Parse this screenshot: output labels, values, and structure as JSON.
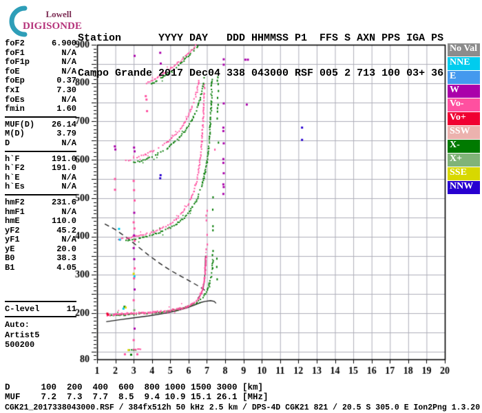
{
  "logo": {
    "line1": "Lowell",
    "line2": "DIGISONDE",
    "arc_color": "#2E9EB8"
  },
  "header": {
    "line1": "Station      YYYY DAY   DDD HHMMSS P1  FFS S AXN PPS IGA PS",
    "line2": "Campo Grande 2017 Dec04 338 043000 RSF 005 2 713 100 03+ 36"
  },
  "params": {
    "sections": [
      {
        "rows": [
          {
            "label": "foF2",
            "value": "6.900"
          },
          {
            "label": "foF1",
            "value": "N/A"
          },
          {
            "label": "foF1p",
            "value": "N/A"
          },
          {
            "label": "foE",
            "value": "N/A"
          },
          {
            "label": "foEp",
            "value": "0.37"
          },
          {
            "label": "fxI",
            "value": "7.30"
          },
          {
            "label": "foEs",
            "value": "N/A"
          },
          {
            "label": "fmin",
            "value": "1.60"
          }
        ]
      },
      {
        "rows": [
          {
            "label": "MUF(D)",
            "value": "26.14"
          },
          {
            "label": "M(D)",
            "value": "3.79"
          },
          {
            "label": "D",
            "value": "N/A"
          }
        ]
      },
      {
        "rows": [
          {
            "label": "h`F",
            "value": "191.0"
          },
          {
            "label": "h`F2",
            "value": "191.0"
          },
          {
            "label": "h`E",
            "value": "N/A"
          },
          {
            "label": "h`Es",
            "value": "N/A"
          }
        ]
      },
      {
        "rows": [
          {
            "label": "hmF2",
            "value": "231.6"
          },
          {
            "label": "hmF1",
            "value": "N/A"
          },
          {
            "label": "hmE",
            "value": "110.0"
          },
          {
            "label": "yF2",
            "value": "45.2"
          },
          {
            "label": "yF1",
            "value": "N/A"
          },
          {
            "label": "yE",
            "value": "20.0"
          },
          {
            "label": "B0",
            "value": "38.3"
          },
          {
            "label": "B1",
            "value": "4.05"
          }
        ]
      }
    ],
    "confidence": {
      "label": "C-level",
      "value": "11"
    },
    "auto_block": [
      "Auto:",
      "Artist5",
      "500200"
    ]
  },
  "legend": {
    "items": [
      {
        "label": "No Val",
        "color": "#8C8C8C"
      },
      {
        "label": "NNE",
        "color": "#00CCEE"
      },
      {
        "label": "E",
        "color": "#4499EE"
      },
      {
        "label": "W",
        "color": "#AA00AA"
      },
      {
        "label": "Vo-",
        "color": "#FF50A0"
      },
      {
        "label": "Vo+",
        "color": "#F00032"
      },
      {
        "label": "SSW",
        "color": "#ECB2AE"
      },
      {
        "label": "X-",
        "color": "#007A00"
      },
      {
        "label": "X+",
        "color": "#80B378"
      },
      {
        "label": "SSE",
        "color": "#D8D800"
      },
      {
        "label": "NNW",
        "color": "#2800D0"
      }
    ]
  },
  "footer": {
    "d_line": "D      100  200  400  600  800 1000 1500 3000 [km]",
    "muf_line": "MUF    7.2  7.3  7.7  8.5  9.4 10.9 15.1 26.1 [MHz]",
    "file_line": "CGK21_2017338043000.RSF / 384fx512h 50 kHz 2.5 km / DPS-4D CGK21 821 / 20.5 S 305.0 E Ion2Png 1.3.20"
  },
  "chart_data": {
    "type": "scatter",
    "title": "Digisonde ionogram, Campo Grande, 2017 Dec04 (day 338) 04:30:00",
    "x_axis": {
      "label": "[MHz]",
      "min": 1,
      "max": 20,
      "tick_step": 1,
      "ticks": [
        1,
        2,
        3,
        4,
        5,
        6,
        7,
        8,
        9,
        10,
        11,
        12,
        13,
        14,
        15,
        16,
        17,
        18,
        19,
        20
      ]
    },
    "y_axis": {
      "label": "[km]",
      "min": 80,
      "max": 900,
      "minor_tick_km": 10,
      "grid_step_km": 50,
      "labels": [
        80,
        200,
        300,
        400,
        500,
        600,
        700,
        800,
        900
      ]
    },
    "grid": {
      "on": true,
      "color": "#ADADB8"
    },
    "colors": {
      "pk": "#FF50A0",
      "gn": "#007A00",
      "w": "#AA00AA",
      "bl": "#2800D0",
      "cy": "#00CCEE",
      "sse": "#D8D800",
      "xp": "#80B378",
      "rd": "#F00032"
    },
    "traces": [
      {
        "name": "F-echo 4th hop X-mode",
        "color": "gn",
        "points": [
          [
            3.95,
            797
          ],
          [
            4.5,
            812
          ],
          [
            5.05,
            831
          ],
          [
            5.6,
            853
          ],
          [
            6.1,
            876
          ],
          [
            6.5,
            897
          ]
        ]
      },
      {
        "name": "F-echo 4th hop O-mode",
        "color": "pk",
        "points": [
          [
            3.7,
            799
          ],
          [
            4.2,
            812
          ],
          [
            4.7,
            828
          ],
          [
            5.2,
            845
          ],
          [
            5.7,
            864
          ],
          [
            6.1,
            882
          ],
          [
            6.4,
            898
          ]
        ]
      },
      {
        "name": "F-echo 3rd hop X-mode",
        "color": "gn",
        "points": [
          [
            3.0,
            592
          ],
          [
            3.6,
            600
          ],
          [
            4.2,
            612
          ],
          [
            4.8,
            629
          ],
          [
            5.35,
            651
          ],
          [
            5.85,
            678
          ],
          [
            6.25,
            710
          ],
          [
            6.55,
            745
          ],
          [
            6.75,
            782
          ],
          [
            6.88,
            818
          ]
        ]
      },
      {
        "name": "F-echo 3rd hop O-mode",
        "color": "pk",
        "points": [
          [
            2.55,
            597
          ],
          [
            3.1,
            605
          ],
          [
            3.7,
            615
          ],
          [
            4.3,
            629
          ],
          [
            4.85,
            646
          ],
          [
            5.3,
            666
          ],
          [
            5.7,
            690
          ],
          [
            6.0,
            716
          ],
          [
            6.25,
            745
          ],
          [
            6.45,
            778
          ],
          [
            6.58,
            808
          ]
        ]
      },
      {
        "name": "F-echo 2nd hop X-mode",
        "color": "gn",
        "points": [
          [
            2.6,
            389
          ],
          [
            3.2,
            395
          ],
          [
            3.9,
            403
          ],
          [
            4.6,
            414
          ],
          [
            5.2,
            428
          ],
          [
            5.7,
            446
          ],
          [
            6.1,
            468
          ],
          [
            6.45,
            496
          ],
          [
            6.72,
            530
          ],
          [
            6.92,
            570
          ],
          [
            7.06,
            615
          ],
          [
            7.15,
            662
          ],
          [
            7.21,
            712
          ],
          [
            7.25,
            762
          ],
          [
            7.27,
            808
          ]
        ]
      },
      {
        "name": "F-echo 2nd hop O-mode",
        "color": "pk",
        "points": [
          [
            2.15,
            392
          ],
          [
            2.7,
            396
          ],
          [
            3.3,
            402
          ],
          [
            3.9,
            409
          ],
          [
            4.4,
            418
          ],
          [
            4.9,
            430
          ],
          [
            5.3,
            444
          ],
          [
            5.65,
            461
          ],
          [
            5.95,
            482
          ],
          [
            6.2,
            507
          ],
          [
            6.4,
            536
          ],
          [
            6.55,
            570
          ],
          [
            6.66,
            610
          ],
          [
            6.74,
            655
          ],
          [
            6.8,
            705
          ],
          [
            6.84,
            755
          ],
          [
            6.86,
            795
          ]
        ]
      },
      {
        "name": "F-echo 1st hop X-mode",
        "color": "gn",
        "points": [
          [
            1.7,
            193
          ],
          [
            2.4,
            196
          ],
          [
            3.2,
            198
          ],
          [
            4.0,
            201
          ],
          [
            4.8,
            205
          ],
          [
            5.5,
            211
          ],
          [
            6.0,
            218
          ],
          [
            6.4,
            227
          ],
          [
            6.7,
            238
          ],
          [
            6.95,
            252
          ],
          [
            7.12,
            270
          ],
          [
            7.23,
            292
          ],
          [
            7.29,
            315
          ],
          [
            7.32,
            338
          ]
        ]
      },
      {
        "name": "F-echo 1st hop O-mode",
        "color": "pk",
        "style": {
          "w": 2,
          "h": 3,
          "step": 2.1,
          "p": 0.93,
          "jy": 0.8
        },
        "points": [
          [
            1.55,
            196
          ],
          [
            2.1,
            199
          ],
          [
            2.8,
            200
          ],
          [
            3.6,
            202
          ],
          [
            4.4,
            205
          ],
          [
            5.1,
            209
          ],
          [
            5.7,
            215
          ],
          [
            6.1,
            222
          ],
          [
            6.4,
            231
          ],
          [
            6.6,
            243
          ],
          [
            6.73,
            258
          ],
          [
            6.82,
            276
          ],
          [
            6.88,
            298
          ],
          [
            6.92,
            322
          ],
          [
            6.95,
            350
          ]
        ]
      },
      {
        "name": "Es remnant X-mode",
        "color": "gn",
        "style": {
          "w": 2,
          "h": 2,
          "step": 2,
          "p": 0.9,
          "jy": 0.4
        },
        "points": [
          [
            2.78,
            104
          ],
          [
            3.12,
            104
          ]
        ]
      },
      {
        "name": "Es remnant O-mode",
        "color": "pk",
        "style": {
          "w": 2,
          "h": 2,
          "step": 2,
          "p": 0.9,
          "jy": 0.4
        },
        "points": [
          [
            2.98,
            106
          ],
          [
            3.36,
            106
          ]
        ]
      }
    ],
    "columns": [
      {
        "f": 7.0,
        "h1": 355,
        "h2": 495,
        "color": "pk",
        "step": 7,
        "p": 0.5
      },
      {
        "f": 7.33,
        "h1": 345,
        "h2": 505,
        "color": "gn",
        "step": 6,
        "p": 0.55
      },
      {
        "f": 7.55,
        "h1": 265,
        "h2": 345,
        "color": "gn",
        "step": 6,
        "p": 0.55
      },
      {
        "f": 7.6,
        "h1": 640,
        "h2": 818,
        "color": "gn",
        "step": 5,
        "p": 0.6
      },
      {
        "f": 7.45,
        "h1": 612,
        "h2": 640,
        "color": "pk",
        "step": 6,
        "p": 0.5
      }
    ],
    "dots": [
      [
        7.92,
        862,
        "w"
      ],
      [
        7.92,
        848,
        "w"
      ],
      [
        9.1,
        861,
        "w"
      ],
      [
        9.24,
        861,
        "w"
      ],
      [
        7.92,
        747,
        "w"
      ],
      [
        9.18,
        744,
        "w"
      ],
      [
        7.9,
        684,
        "w"
      ],
      [
        7.9,
        675,
        "w"
      ],
      [
        7.92,
        643,
        "w"
      ],
      [
        7.9,
        602,
        "w"
      ],
      [
        7.9,
        592,
        "w"
      ],
      [
        7.92,
        565,
        "w"
      ],
      [
        7.9,
        536,
        "w"
      ],
      [
        7.92,
        529,
        "w"
      ],
      [
        7.9,
        511,
        "w"
      ],
      [
        12.2,
        684,
        "bl"
      ],
      [
        12.2,
        652,
        "bl"
      ],
      [
        3.05,
        871,
        "w"
      ],
      [
        3.02,
        632,
        "w"
      ],
      [
        3.05,
        622,
        "w"
      ],
      [
        3.0,
        545,
        "pk"
      ],
      [
        3.02,
        521,
        "pk"
      ],
      [
        3.05,
        494,
        "pk"
      ],
      [
        3.03,
        462,
        "w"
      ],
      [
        3.0,
        437,
        "pk"
      ],
      [
        3.04,
        421,
        "pk"
      ],
      [
        3.02,
        403,
        "w"
      ],
      [
        3.05,
        389,
        "pk"
      ],
      [
        3.0,
        370,
        "w"
      ],
      [
        3.03,
        341,
        "w"
      ],
      [
        3.05,
        317,
        "pk"
      ],
      [
        3.0,
        303,
        "sse"
      ],
      [
        3.04,
        296,
        "cy"
      ],
      [
        3.02,
        291,
        "pk"
      ],
      [
        3.05,
        262,
        "w"
      ],
      [
        3.0,
        234,
        "pk"
      ],
      [
        3.03,
        208,
        "xp"
      ],
      [
        3.05,
        160,
        "w"
      ],
      [
        3.0,
        130,
        "pk"
      ],
      [
        1.98,
        550,
        "pk"
      ],
      [
        1.98,
        522,
        "pk"
      ],
      [
        1.97,
        635,
        "w"
      ],
      [
        2.0,
        627,
        "w"
      ],
      [
        4.45,
        879,
        "w"
      ],
      [
        4.48,
        851,
        "w"
      ],
      [
        4.47,
        560,
        "bl"
      ],
      [
        4.45,
        552,
        "bl"
      ],
      [
        3.66,
        766,
        "pk"
      ],
      [
        3.7,
        757,
        "pk"
      ],
      [
        3.73,
        727,
        "pk"
      ],
      [
        2.5,
        217,
        "gn"
      ],
      [
        2.56,
        215,
        "sse"
      ],
      [
        2.44,
        212,
        "cy"
      ],
      [
        2.2,
        420,
        "cy"
      ],
      [
        2.24,
        392,
        "cy"
      ],
      [
        1.6,
        196,
        "rd"
      ],
      [
        1.56,
        199,
        "rd"
      ],
      [
        2.72,
        104,
        "sse"
      ],
      [
        3.2,
        93,
        "pk"
      ],
      [
        2.52,
        93,
        "pk"
      ],
      [
        2.86,
        92,
        "gn"
      ]
    ],
    "muf_curve": {
      "style": "dashed",
      "color": "#222222",
      "points": [
        [
          1.42,
          433
        ],
        [
          2,
          418
        ],
        [
          2.6,
          398
        ],
        [
          3.2,
          375
        ],
        [
          3.8,
          352
        ],
        [
          4.4,
          331
        ],
        [
          5,
          312
        ],
        [
          5.6,
          296
        ],
        [
          6.1,
          283
        ],
        [
          6.5,
          272
        ],
        [
          6.8,
          263
        ],
        [
          6.95,
          258
        ]
      ]
    },
    "profile_line": {
      "style": "solid",
      "color": "#222222",
      "points": [
        [
          1.5,
          178
        ],
        [
          2.2,
          183
        ],
        [
          3.0,
          188
        ],
        [
          3.8,
          193
        ],
        [
          4.6,
          199
        ],
        [
          5.3,
          206
        ],
        [
          5.9,
          214
        ],
        [
          6.35,
          222
        ],
        [
          6.65,
          228
        ],
        [
          6.9,
          231
        ],
        [
          7.2,
          233
        ],
        [
          7.4,
          231
        ],
        [
          7.5,
          226
        ]
      ]
    },
    "fit_line": {
      "style": "solid",
      "color": "#111111",
      "points": [
        [
          6.5,
          239
        ],
        [
          6.68,
          250
        ],
        [
          6.8,
          265
        ],
        [
          6.87,
          288
        ],
        [
          6.9,
          315
        ],
        [
          6.92,
          350
        ]
      ]
    }
  }
}
